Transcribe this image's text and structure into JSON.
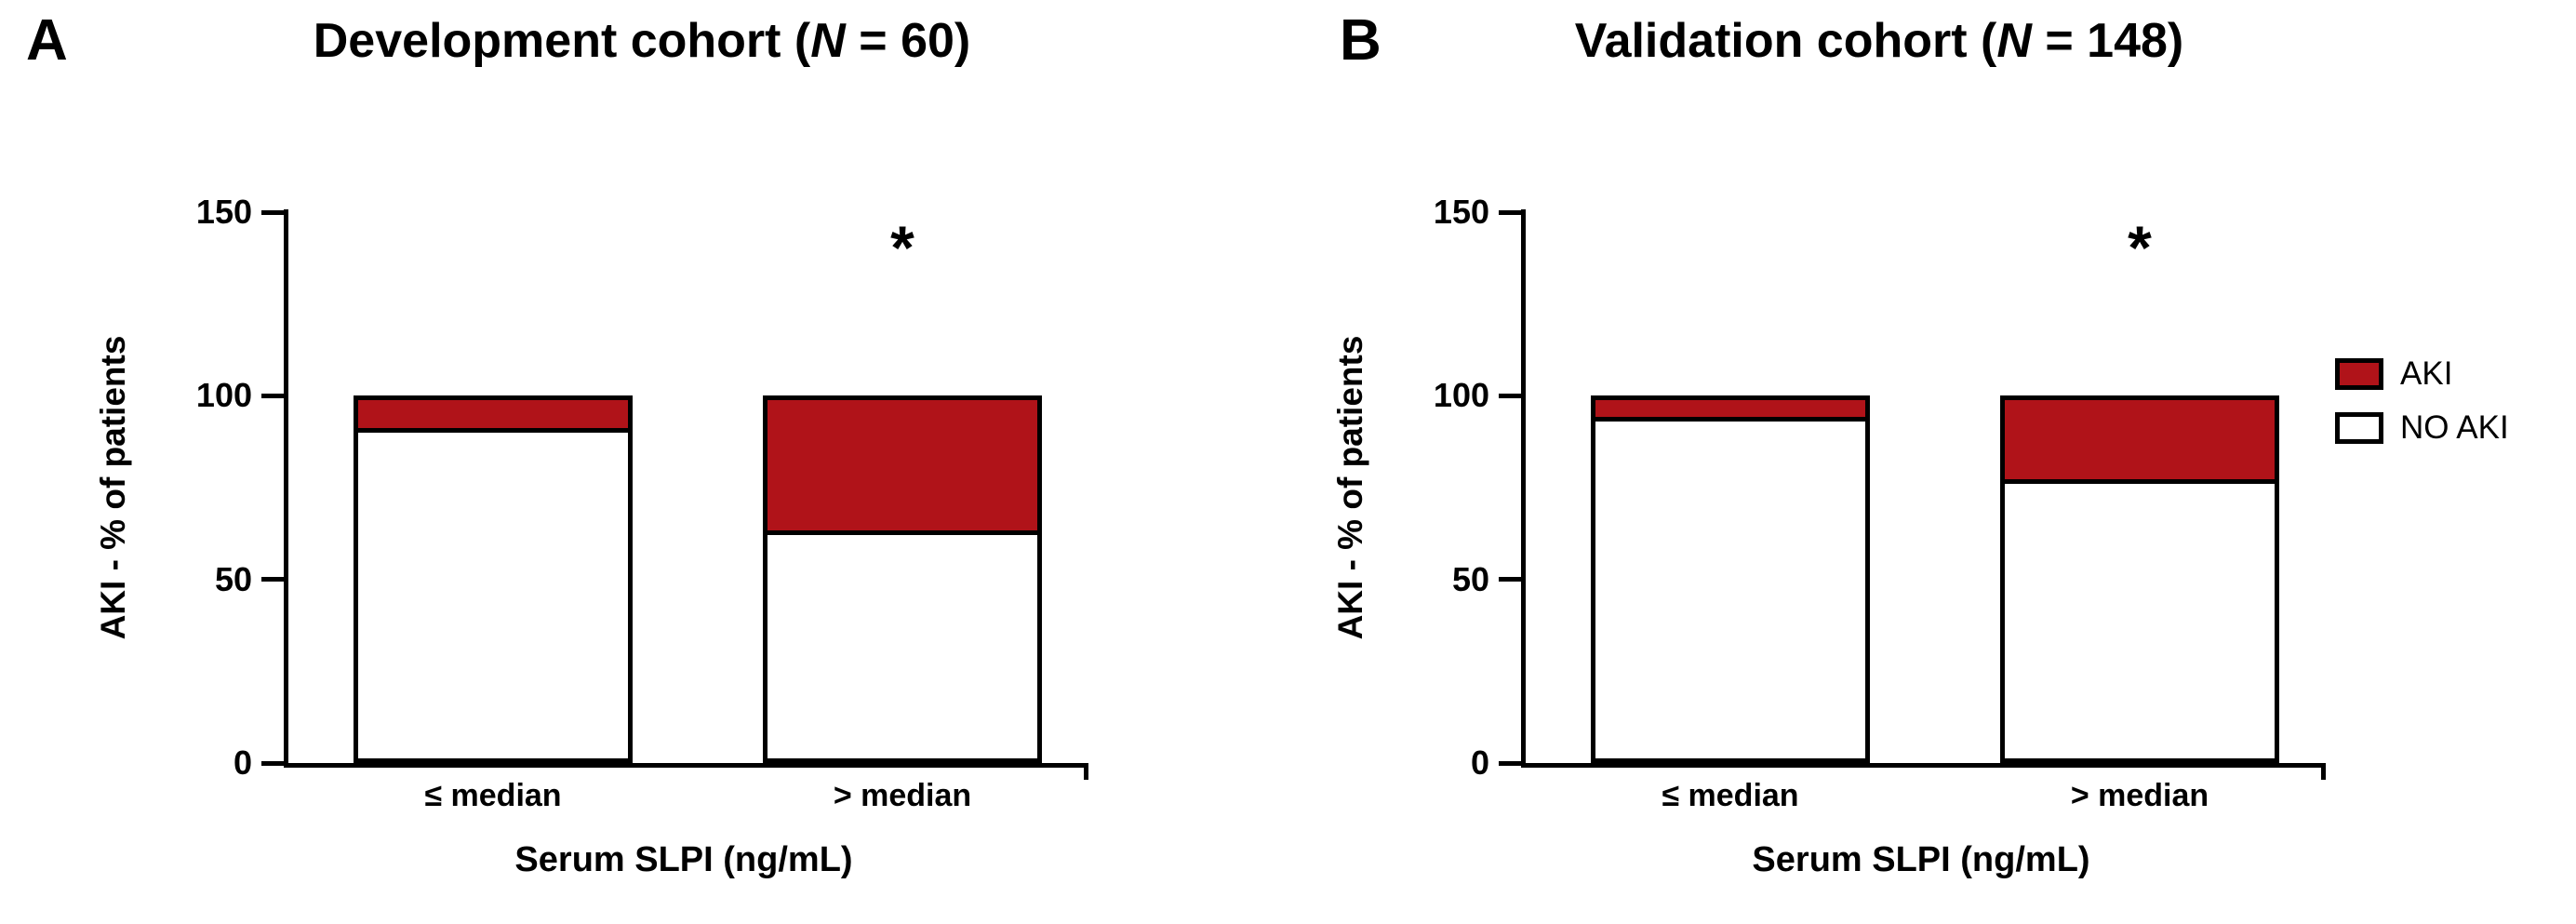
{
  "figure": {
    "background": "#ffffff",
    "axis_color": "#000000"
  },
  "legend": {
    "position": "right",
    "items": [
      {
        "label": "AKI",
        "color": "#b01319"
      },
      {
        "label": "NO AKI",
        "color": "#ffffff"
      }
    ]
  },
  "chart_data": [
    {
      "type": "bar",
      "stacked": true,
      "panel_letter": "A",
      "title": "Development cohort (N = 60)",
      "title_parts": {
        "pre": "Development cohort (",
        "italic": "N",
        "post": " = 60)"
      },
      "categories": [
        "≤ median",
        "> median"
      ],
      "series": [
        {
          "name": "NO AKI",
          "values": [
            90,
            62
          ],
          "color": "#ffffff"
        },
        {
          "name": "AKI",
          "values": [
            10,
            38
          ],
          "color": "#b01319"
        }
      ],
      "ylabel": "AKI - % of patients",
      "xlabel": "Serum SLPI (ng/mL)",
      "ylim": [
        0,
        150
      ],
      "yticks": [
        0,
        50,
        100,
        150
      ],
      "grid": false,
      "annotations": [
        {
          "text": "*",
          "category_index": 1
        }
      ]
    },
    {
      "type": "bar",
      "stacked": true,
      "panel_letter": "B",
      "title": "Validation cohort (N = 148)",
      "title_parts": {
        "pre": "Validation cohort (",
        "italic": "N",
        "post": " = 148)"
      },
      "categories": [
        "≤ median",
        "> median"
      ],
      "series": [
        {
          "name": "NO AKI",
          "values": [
            93,
            76
          ],
          "color": "#ffffff"
        },
        {
          "name": "AKI",
          "values": [
            7,
            24
          ],
          "color": "#b01319"
        }
      ],
      "ylabel": "AKI - % of patients",
      "xlabel": "Serum SLPI (ng/mL)",
      "ylim": [
        0,
        150
      ],
      "yticks": [
        0,
        50,
        100,
        150
      ],
      "grid": false,
      "annotations": [
        {
          "text": "*",
          "category_index": 1
        }
      ]
    }
  ]
}
